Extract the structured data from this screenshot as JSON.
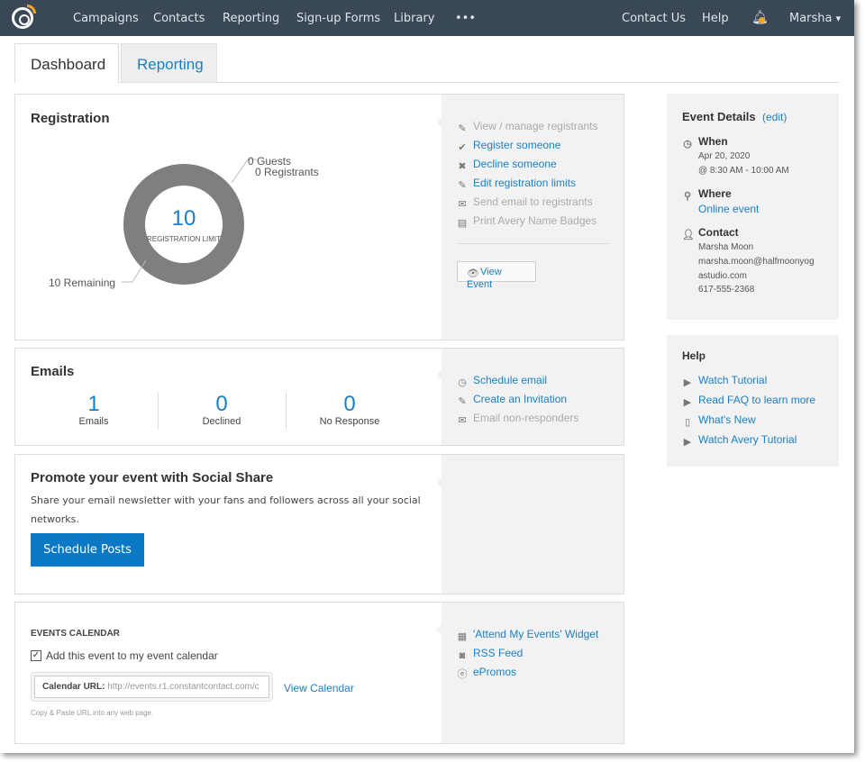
{
  "nav": {
    "items": [
      "Campaigns",
      "Contacts",
      "Reporting",
      "Sign-up Forms",
      "Library",
      "•••"
    ],
    "right": [
      "Contact Us",
      "Help"
    ],
    "user": "Marsha",
    "chevron": "⌄"
  },
  "tabs": [
    "Dashboard",
    "Reporting"
  ],
  "registration": {
    "title": "Registration",
    "limit": "10",
    "limit_label": "REGISTRATION LIMIT",
    "guests": "0 Guests",
    "registrants": "0 Registrants",
    "remaining": "10 Remaining",
    "chart_data": {
      "type": "pie",
      "categories": [
        "Registrants",
        "Guests",
        "Remaining"
      ],
      "values": [
        0,
        0,
        10
      ]
    },
    "actions": [
      {
        "label": "View / manage registrants",
        "icon": "pencil-icon",
        "enabled": false
      },
      {
        "label": "Register someone",
        "icon": "check-circle-icon",
        "enabled": true
      },
      {
        "label": "Decline someone",
        "icon": "x-circle-icon",
        "enabled": true
      },
      {
        "label": "Edit registration limits",
        "icon": "pencil-icon",
        "enabled": true
      },
      {
        "label": "Send email to registrants",
        "icon": "envelope-icon",
        "enabled": false
      },
      {
        "label": "Print Avery Name Badges",
        "icon": "badge-icon",
        "enabled": false
      }
    ],
    "view_event": "View Event"
  },
  "emails": {
    "title": "Emails",
    "stats": [
      {
        "value": "1",
        "label": "Emails"
      },
      {
        "value": "0",
        "label": "Declined"
      },
      {
        "value": "0",
        "label": "No Response"
      }
    ],
    "actions": [
      {
        "label": "Schedule email",
        "icon": "clock-icon",
        "enabled": true
      },
      {
        "label": "Create an Invitation",
        "icon": "edit-icon",
        "enabled": true
      },
      {
        "label": "Email non-responders",
        "icon": "envelope-icon",
        "enabled": false
      }
    ]
  },
  "promote": {
    "title": "Promote your event with Social Share",
    "text": "Share your email newsletter with your fans and followers across all your social networks.",
    "button": "Schedule Posts"
  },
  "calendar": {
    "title": "EVENTS CALENDAR",
    "checkbox_label": "Add this event to my event calendar",
    "checked": true,
    "url_label": "Calendar URL:",
    "url_value": "http://events.r1.constantcontact.com/c",
    "view_calendar": "View Calendar",
    "hint": "Copy & Paste URL into any web page.",
    "links": [
      {
        "label": "'Attend My Events' Widget",
        "icon": "calendar-icon"
      },
      {
        "label": "RSS Feed",
        "icon": "rss-icon"
      },
      {
        "label": "ePromos",
        "icon": "epromos-icon"
      }
    ]
  },
  "details": {
    "title": "Event Details",
    "edit": "(edit)",
    "when_label": "When",
    "date": "Apr 20, 2020",
    "time": "@ 8:30 AM - 10:00 AM",
    "where_label": "Where",
    "where": "Online event",
    "contact_label": "Contact",
    "contact_name": "Marsha Moon",
    "email1": "marsha.moon@halfmoonyog",
    "email2": "astudio.com",
    "phone": "617-555-2368"
  },
  "help": {
    "title": "Help",
    "links": [
      {
        "label": "Watch Tutorial",
        "icon": "play-icon"
      },
      {
        "label": "Read FAQ to learn more",
        "icon": "play-icon"
      },
      {
        "label": "What's New",
        "icon": "document-icon"
      },
      {
        "label": "Watch Avery Tutorial",
        "icon": "play-icon"
      }
    ]
  },
  "colors": {
    "nav": "#3a4757",
    "link": "#1a7fc4",
    "button": "#0b78c5",
    "donut": "#7f7f7f",
    "accent": "#f5a623"
  }
}
